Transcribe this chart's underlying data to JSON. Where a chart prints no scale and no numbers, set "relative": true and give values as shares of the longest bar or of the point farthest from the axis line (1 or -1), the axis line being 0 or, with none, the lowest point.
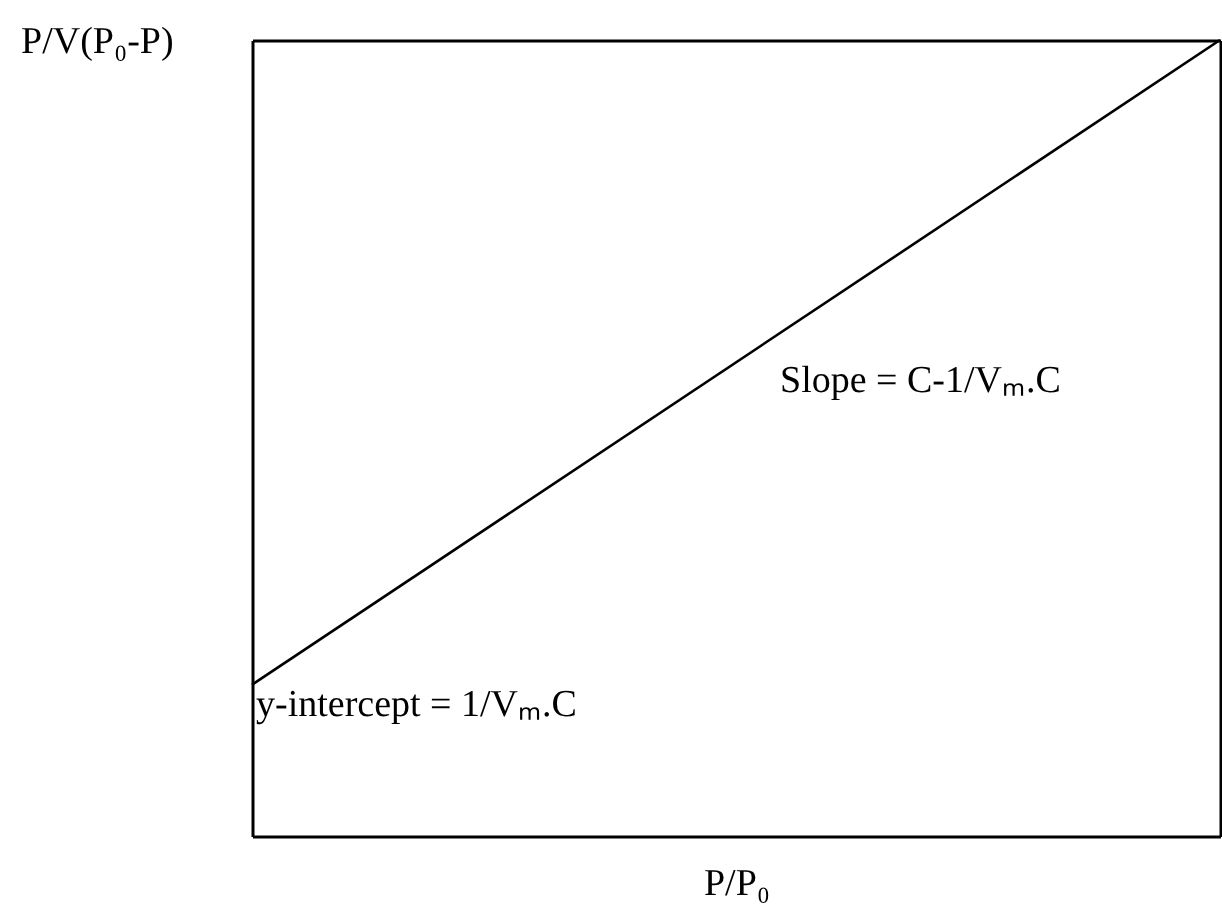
{
  "chart_data": {
    "type": "line",
    "relative": true,
    "xlabel": "P/P₀",
    "ylabel": "P/V(P₀-P)",
    "categories": [
      null,
      null
    ],
    "series": [
      {
        "color": "#000000",
        "values": [
          0.19,
          1
        ]
      }
    ],
    "annotations": [
      "Slope = C-1/Vₘ.C",
      "y-intercept = 1/Vₘ.C"
    ],
    "tick_labels": false,
    "grid": false
  }
}
